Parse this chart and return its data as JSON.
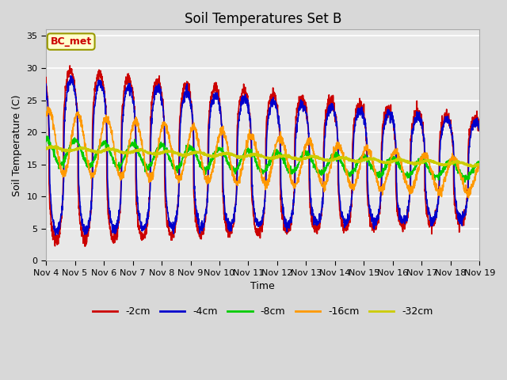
{
  "title": "Soil Temperatures Set B",
  "xlabel": "Time",
  "ylabel": "Soil Temperature (C)",
  "annotation": "BC_met",
  "ylim": [
    0,
    36
  ],
  "yticks": [
    0,
    5,
    10,
    15,
    20,
    25,
    30,
    35
  ],
  "series": {
    "-2cm": {
      "color": "#cc0000",
      "lw": 1.2
    },
    "-4cm": {
      "color": "#0000cc",
      "lw": 1.2
    },
    "-8cm": {
      "color": "#00cc00",
      "lw": 1.2
    },
    "-16cm": {
      "color": "#ff9900",
      "lw": 1.2
    },
    "-32cm": {
      "color": "#cccc00",
      "lw": 1.8
    }
  },
  "x_tick_labels": [
    "Nov 4",
    "Nov 5",
    "Nov 6",
    "Nov 7",
    "Nov 8",
    "Nov 9",
    "Nov 10",
    "Nov 11",
    "Nov 12",
    "Nov 13",
    "Nov 14",
    "Nov 15",
    "Nov 16",
    "Nov 17",
    "Nov 18",
    "Nov 19"
  ],
  "background_color": "#e8e8e8",
  "plot_bg_color": "#e8e8e8",
  "fig_bg_color": "#d8d8d8",
  "grid_color": "#ffffff",
  "title_fontsize": 12,
  "axis_fontsize": 9,
  "tick_fontsize": 8
}
